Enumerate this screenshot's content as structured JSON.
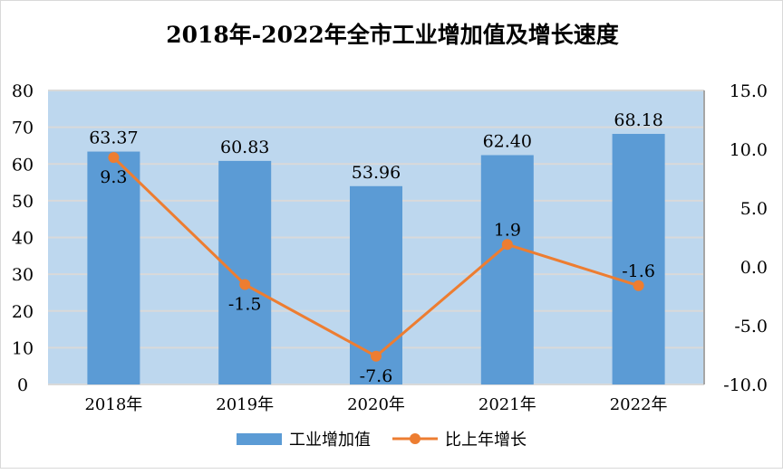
{
  "chart_data": {
    "type": "bar",
    "title": "2018年-2022年全市工业增加值及增长速度",
    "categories": [
      "2018年",
      "2019年",
      "2020年",
      "2021年",
      "2022年"
    ],
    "series": [
      {
        "name": "工业增加值",
        "type": "bar",
        "axis": "left",
        "values": [
          63.37,
          60.83,
          53.96,
          62.4,
          68.18
        ],
        "labels": [
          "63.37",
          "60.83",
          "53.96",
          "62.40",
          "68.18"
        ],
        "color": "#5b9bd5"
      },
      {
        "name": "比上年增长",
        "type": "line",
        "axis": "right",
        "values": [
          9.3,
          -1.5,
          -7.6,
          1.9,
          -1.6
        ],
        "labels": [
          "9.3",
          "-1.5",
          "-7.6",
          "1.9",
          "-1.6"
        ],
        "color": "#ed7d31"
      }
    ],
    "left_axis": {
      "range": [
        0,
        80
      ],
      "ticks": [
        "0",
        "10",
        "20",
        "30",
        "40",
        "50",
        "60",
        "70",
        "80"
      ]
    },
    "right_axis": {
      "range": [
        -10,
        15
      ],
      "ticks": [
        "-10.0",
        "-5.0",
        "0.0",
        "5.0",
        "10.0",
        "15.0"
      ]
    },
    "grid": true,
    "plot_background": "#bdd7ee",
    "legend_position": "bottom"
  }
}
